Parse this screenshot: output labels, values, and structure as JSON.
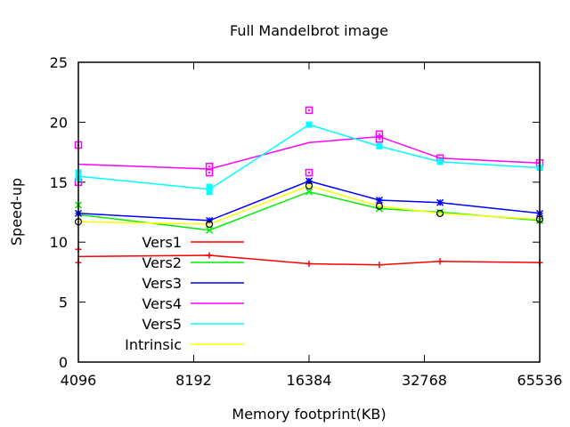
{
  "chart_data": {
    "type": "line",
    "title": "Full Mandelbrot image",
    "xlabel": "Memory footprint(KB)",
    "ylabel": "Speed-up",
    "x_scale": "log2",
    "xlim": [
      4096,
      65536
    ],
    "ylim": [
      0,
      25
    ],
    "x_ticks": [
      4096,
      8192,
      16384,
      32768,
      65536
    ],
    "y_ticks": [
      0,
      5,
      10,
      15,
      20,
      25
    ],
    "grid": false,
    "legend_position": "left-center",
    "x": [
      4096,
      9000,
      16384,
      25000,
      36000,
      65536
    ],
    "series": [
      {
        "name": "Vers1",
        "color": "#ff0000",
        "marker": "plus",
        "values": [
          8.8,
          8.9,
          8.2,
          8.1,
          8.4,
          8.3
        ],
        "points": [
          [
            4096,
            8.3
          ],
          [
            4096,
            9.4
          ],
          [
            9000,
            8.9
          ],
          [
            16384,
            8.2
          ],
          [
            25000,
            8.1
          ],
          [
            36000,
            8.4
          ],
          [
            65536,
            8.3
          ]
        ]
      },
      {
        "name": "Vers2",
        "color": "#00ee00",
        "marker": "x",
        "values": [
          12.3,
          11.0,
          14.2,
          12.8,
          12.5,
          11.8
        ],
        "points": [
          [
            4096,
            13.1
          ],
          [
            4096,
            12.4
          ],
          [
            9000,
            11.0
          ],
          [
            16384,
            14.2
          ],
          [
            25000,
            12.8
          ],
          [
            36000,
            12.5
          ],
          [
            65536,
            11.8
          ]
        ]
      },
      {
        "name": "Vers3",
        "color": "#0000ff",
        "marker": "star",
        "values": [
          12.4,
          11.8,
          15.1,
          13.5,
          13.3,
          12.4
        ],
        "points": [
          [
            4096,
            12.4
          ],
          [
            9000,
            11.8
          ],
          [
            16384,
            15.1
          ],
          [
            25000,
            13.5
          ],
          [
            36000,
            13.3
          ],
          [
            65536,
            12.4
          ]
        ]
      },
      {
        "name": "Vers4",
        "color": "#ff00ff",
        "marker": "square-open",
        "values": [
          16.5,
          16.1,
          18.3,
          18.8,
          17.0,
          16.6
        ],
        "points": [
          [
            4096,
            18.1
          ],
          [
            4096,
            15.0
          ],
          [
            9000,
            16.3
          ],
          [
            9000,
            15.8
          ],
          [
            16384,
            21.0
          ],
          [
            16384,
            15.8
          ],
          [
            25000,
            19.0
          ],
          [
            25000,
            18.6
          ],
          [
            36000,
            17.0
          ],
          [
            65536,
            16.6
          ]
        ]
      },
      {
        "name": "Vers5",
        "color": "#00ffff",
        "marker": "square-filled",
        "values": [
          15.5,
          14.4,
          19.8,
          18.0,
          16.7,
          16.2
        ],
        "points": [
          [
            4096,
            15.8
          ],
          [
            4096,
            15.3
          ],
          [
            9000,
            14.6
          ],
          [
            9000,
            14.2
          ],
          [
            16384,
            19.8
          ],
          [
            25000,
            18.0
          ],
          [
            36000,
            16.7
          ],
          [
            65536,
            16.2
          ]
        ]
      },
      {
        "name": "Intrinsic",
        "color": "#ffff00",
        "marker": "circle-open",
        "values": [
          11.7,
          11.5,
          14.7,
          13.0,
          12.4,
          11.9
        ],
        "points": [
          [
            4096,
            11.7
          ],
          [
            9000,
            11.5
          ],
          [
            16384,
            14.7
          ],
          [
            25000,
            13.0
          ],
          [
            36000,
            12.4
          ],
          [
            65536,
            11.9
          ]
        ]
      }
    ]
  }
}
